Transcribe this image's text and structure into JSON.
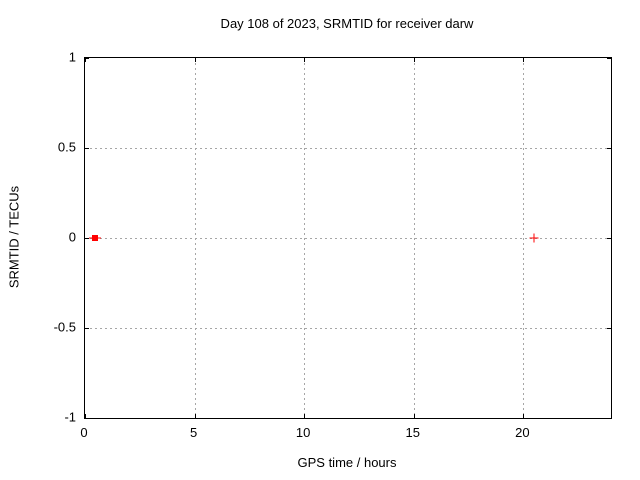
{
  "chart_data": {
    "type": "scatter",
    "title": "Day 108 of 2023, SRMTID for receiver darw",
    "xlabel": "GPS time / hours",
    "ylabel": "SRMTID / TECUs",
    "xlim": [
      0,
      24
    ],
    "ylim": [
      -1,
      1
    ],
    "xticks": [
      0,
      5,
      10,
      15,
      20
    ],
    "xtick_labels": [
      "0",
      "5",
      "10",
      "15",
      "20"
    ],
    "yticks": [
      -1,
      -0.5,
      0,
      0.5,
      1
    ],
    "ytick_labels": [
      "-1",
      "-0.5",
      "0",
      "0.5",
      "1"
    ],
    "grid": true,
    "grid_style": "dashed-gray",
    "legend": "none",
    "series": [
      {
        "name": "srmtid-point-errorbar",
        "marker": "filled-square-with-x-errorbar",
        "color": "#ff0000",
        "points": [
          {
            "x": 0.45,
            "y": 0,
            "xerr": 0.27
          }
        ]
      },
      {
        "name": "srmtid-point",
        "marker": "plus",
        "color": "#ff0000",
        "points": [
          {
            "x": 20.5,
            "y": 0
          }
        ]
      }
    ]
  },
  "colors": {
    "background": "#ffffff",
    "axis": "#000000",
    "grid": "#a6a6a6",
    "text": "#000000",
    "points": "#ff0000"
  }
}
